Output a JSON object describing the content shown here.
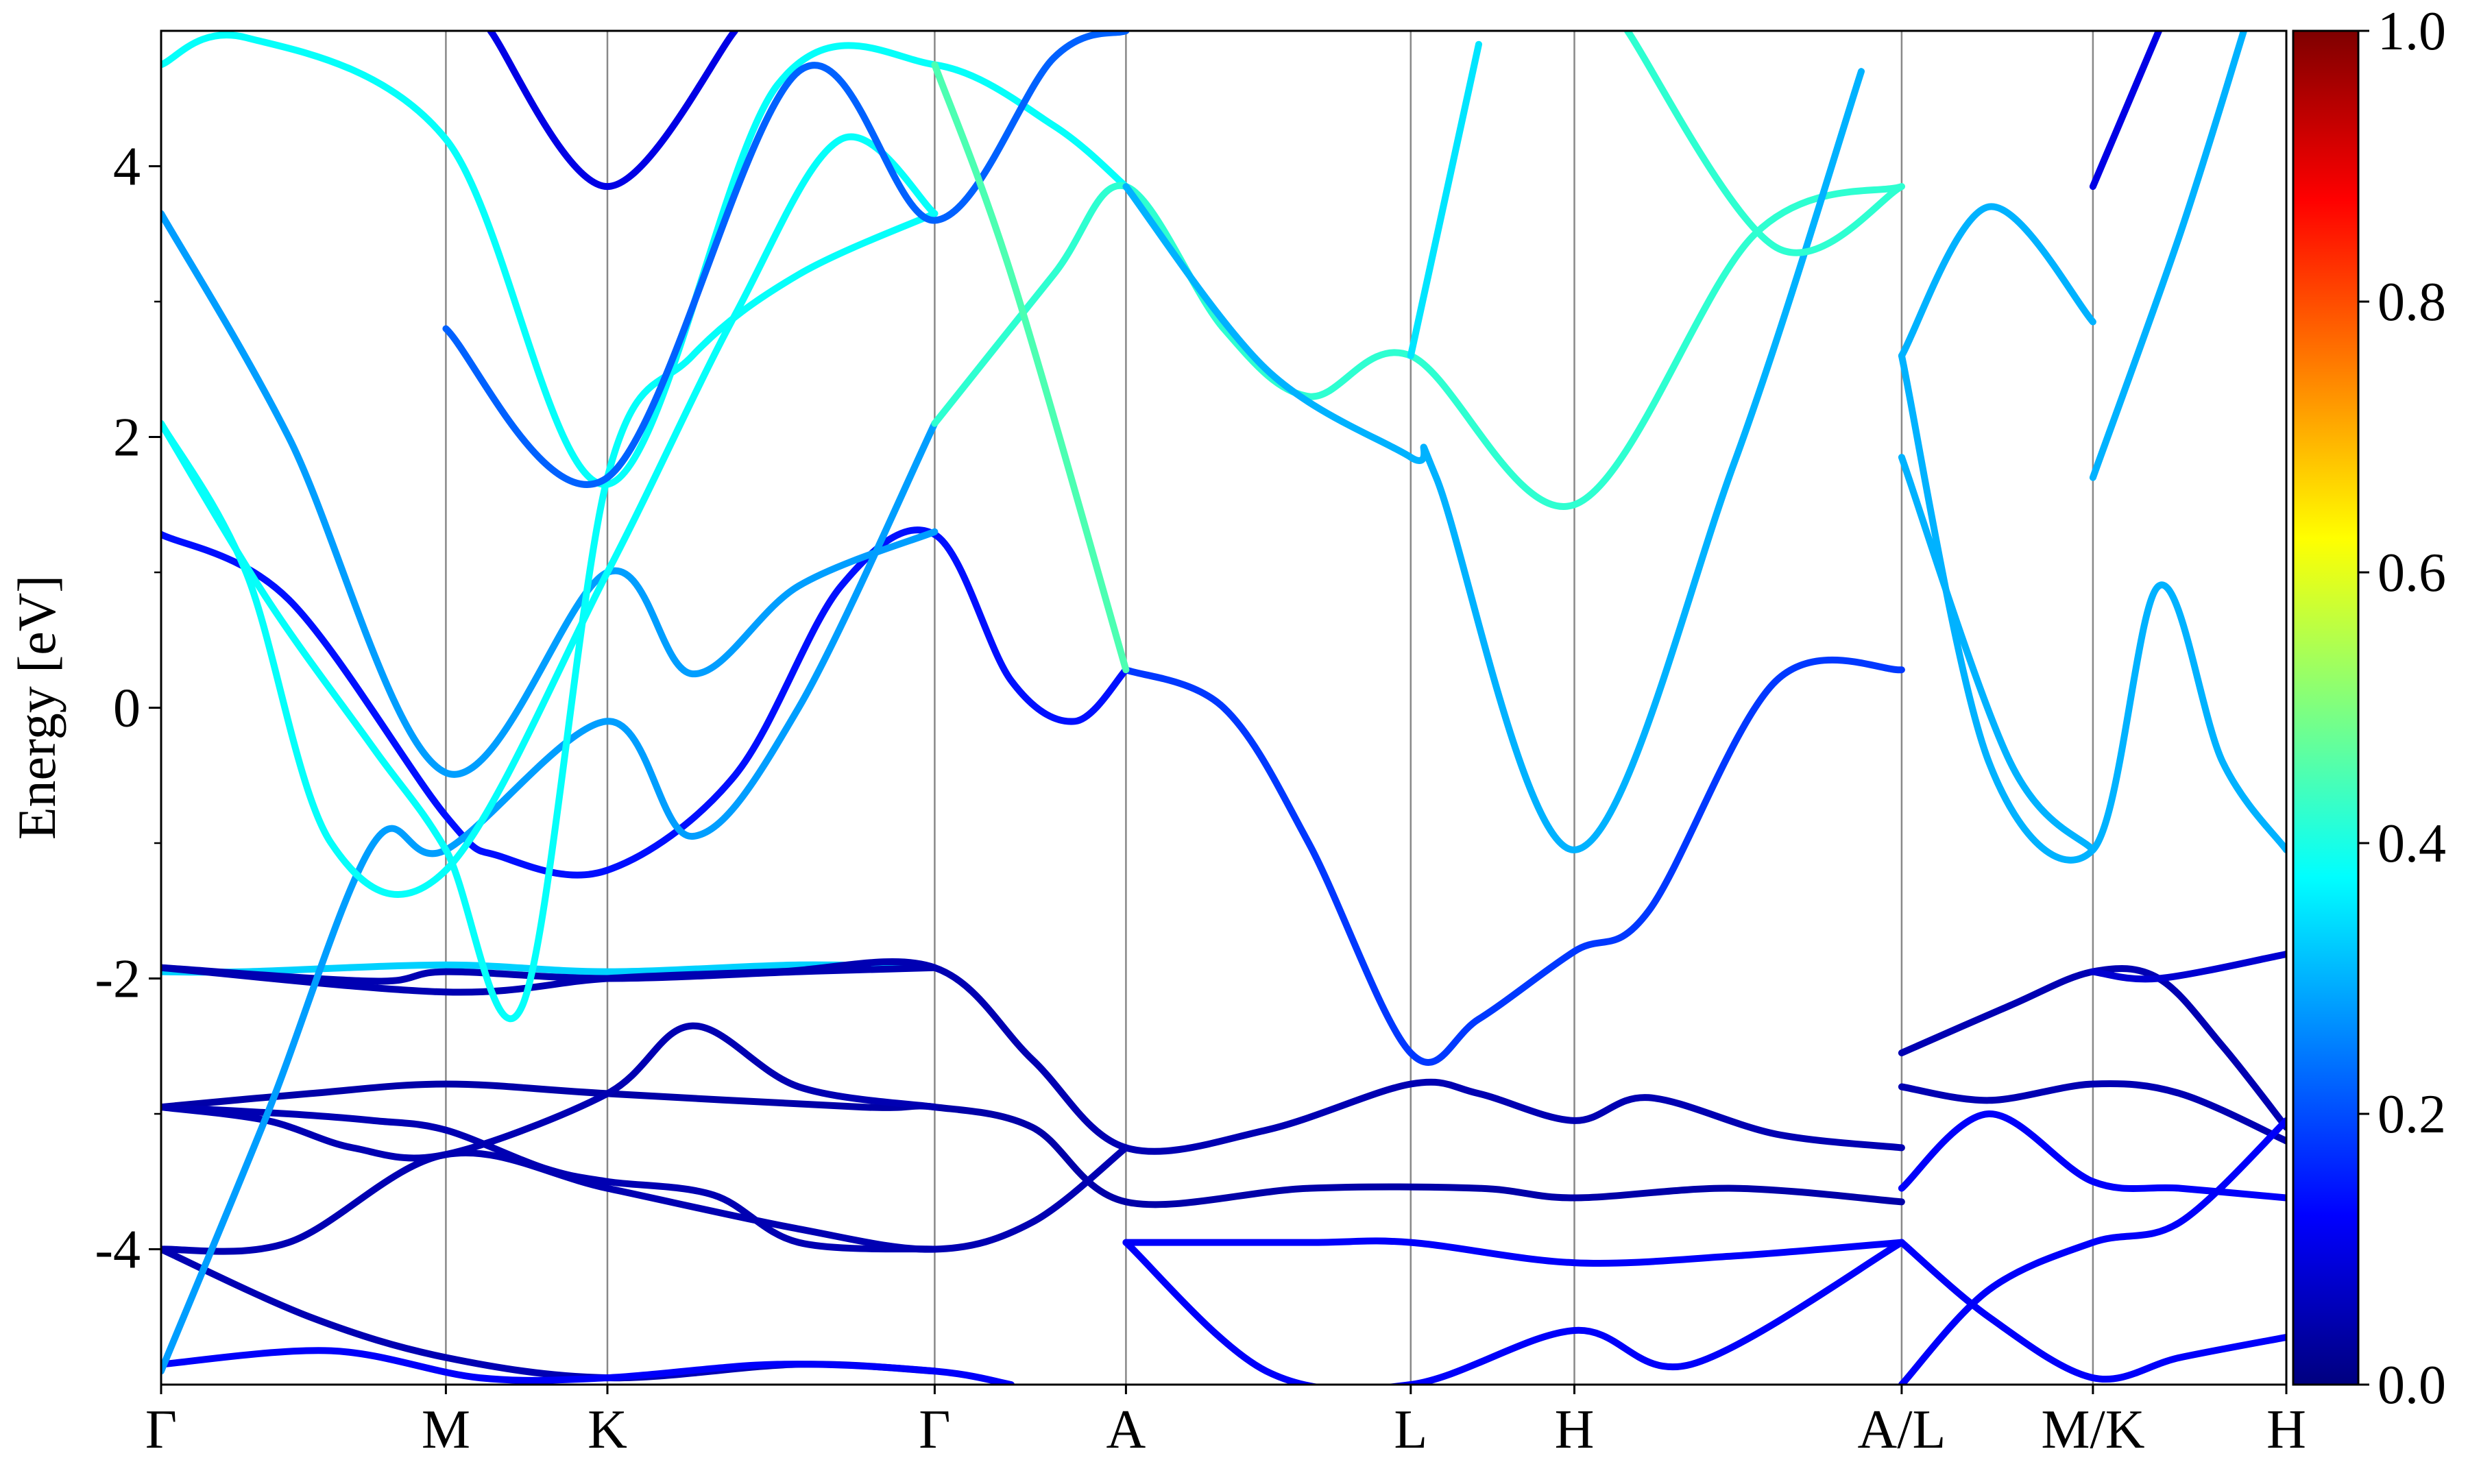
{
  "chart_data": {
    "type": "line",
    "title": "",
    "xlabel": "",
    "ylabel": "Energy [eV]",
    "ylim": [
      -5,
      5
    ],
    "y_ticks": [
      -4,
      -2,
      0,
      2,
      4
    ],
    "y_tick_labels": [
      "-4",
      "-2",
      "0",
      "2",
      "4"
    ],
    "y_minor_ticks": [
      -3,
      -1,
      1,
      3
    ],
    "grid": "vertical lines at high-symmetry points",
    "kpath_ticks": [
      {
        "label": "Γ",
        "x": 0.0
      },
      {
        "label": "M",
        "x": 0.134
      },
      {
        "label": "K",
        "x": 0.21
      },
      {
        "label": "Γ",
        "x": 0.364
      },
      {
        "label": "A",
        "x": 0.454
      },
      {
        "label": "L",
        "x": 0.588
      },
      {
        "label": "H",
        "x": 0.665
      },
      {
        "label": "A/L",
        "x": 0.819
      },
      {
        "label": "M/K",
        "x": 0.909
      },
      {
        "label": "H",
        "x": 1.0
      }
    ],
    "colorbar": {
      "colormap": "jet",
      "range": [
        0,
        1
      ],
      "ticks": [
        0.0,
        0.2,
        0.4,
        0.6,
        0.8,
        1.0
      ],
      "tick_labels": [
        "0.0",
        "0.2",
        "0.4",
        "0.6",
        "0.8",
        "1.0"
      ]
    },
    "colors": {
      "jet": [
        "#00007f",
        "#0000ff",
        "#007fff",
        "#00ffff",
        "#7fff7f",
        "#ffff00",
        "#ff7f00",
        "#ff0000",
        "#7f0000"
      ],
      "gridline": "#888888",
      "axis": "#000000"
    },
    "series": [
      {
        "w": 0.33,
        "points": [
          [
            0,
            -1.95
          ],
          [
            0.04,
            -1.95
          ],
          [
            0.134,
            -1.9
          ],
          [
            0.21,
            -1.95
          ],
          [
            0.3,
            -1.9
          ],
          [
            0.364,
            -1.92
          ]
        ]
      },
      {
        "w": 0.05,
        "points": [
          [
            0,
            -1.92
          ],
          [
            0.134,
            -2.1
          ],
          [
            0.21,
            -2.0
          ],
          [
            0.29,
            -1.95
          ],
          [
            0.364,
            -1.92
          ],
          [
            0.41,
            -2.6
          ],
          [
            0.454,
            -3.25
          ],
          [
            0.52,
            -3.12
          ],
          [
            0.588,
            -2.78
          ],
          [
            0.62,
            -2.85
          ],
          [
            0.665,
            -3.05
          ],
          [
            0.7,
            -2.88
          ],
          [
            0.76,
            -3.15
          ],
          [
            0.819,
            -3.25
          ]
        ]
      },
      {
        "w": 0.05,
        "points": [
          [
            0,
            -1.92
          ],
          [
            0.1,
            -2.02
          ],
          [
            0.134,
            -1.95
          ],
          [
            0.21,
            -2.0
          ],
          [
            0.3,
            -1.95
          ],
          [
            0.364,
            -1.92
          ]
        ]
      },
      {
        "w": 0.04,
        "points": [
          [
            0,
            -2.95
          ],
          [
            0.07,
            -2.85
          ],
          [
            0.134,
            -2.78
          ],
          [
            0.21,
            -2.85
          ],
          [
            0.33,
            -2.95
          ],
          [
            0.364,
            -2.95
          ],
          [
            0.41,
            -3.1
          ],
          [
            0.454,
            -3.65
          ],
          [
            0.54,
            -3.55
          ],
          [
            0.62,
            -3.55
          ],
          [
            0.665,
            -3.62
          ],
          [
            0.74,
            -3.55
          ],
          [
            0.819,
            -3.65
          ]
        ]
      },
      {
        "w": 0.05,
        "points": [
          [
            0,
            -2.95
          ],
          [
            0.05,
            -3.05
          ],
          [
            0.09,
            -3.25
          ],
          [
            0.134,
            -3.3
          ],
          [
            0.21,
            -2.85
          ],
          [
            0.25,
            -2.35
          ],
          [
            0.3,
            -2.8
          ],
          [
            0.364,
            -2.95
          ]
        ]
      },
      {
        "w": 0.05,
        "points": [
          [
            0,
            -2.95
          ],
          [
            0.06,
            -3.0
          ],
          [
            0.1,
            -3.05
          ],
          [
            0.134,
            -3.12
          ],
          [
            0.18,
            -3.4
          ],
          [
            0.21,
            -3.5
          ],
          [
            0.26,
            -3.6
          ],
          [
            0.3,
            -3.95
          ],
          [
            0.364,
            -4.0
          ]
        ]
      },
      {
        "w": 0.05,
        "points": [
          [
            0,
            -4.0
          ],
          [
            0.06,
            -3.95
          ],
          [
            0.134,
            -3.3
          ],
          [
            0.21,
            -3.55
          ],
          [
            0.3,
            -3.85
          ],
          [
            0.364,
            -4.0
          ],
          [
            0.41,
            -3.8
          ],
          [
            0.454,
            -3.25
          ]
        ]
      },
      {
        "w": 0.05,
        "points": [
          [
            0,
            -4.0
          ],
          [
            0.07,
            -4.5
          ],
          [
            0.134,
            -4.8
          ],
          [
            0.21,
            -4.95
          ],
          [
            0.3,
            -4.85
          ],
          [
            0.364,
            -4.9
          ]
        ]
      },
      {
        "w": 0.12,
        "points": [
          [
            0,
            -4.85
          ],
          [
            0.08,
            -4.75
          ],
          [
            0.15,
            -4.95
          ],
          [
            0.21,
            -4.95
          ],
          [
            0.29,
            -4.85
          ],
          [
            0.364,
            -4.9
          ],
          [
            0.4,
            -5.0
          ]
        ]
      },
      {
        "w": 0.12,
        "points": [
          [
            0.454,
            -3.95
          ],
          [
            0.54,
            -3.95
          ],
          [
            0.588,
            -3.95
          ],
          [
            0.665,
            -4.1
          ],
          [
            0.74,
            -4.05
          ],
          [
            0.819,
            -3.95
          ]
        ]
      },
      {
        "w": 0.12,
        "points": [
          [
            0.454,
            -3.95
          ],
          [
            0.52,
            -4.9
          ],
          [
            0.588,
            -5.0
          ],
          [
            0.665,
            -4.6
          ],
          [
            0.72,
            -4.85
          ],
          [
            0.819,
            -3.95
          ]
        ]
      },
      {
        "w": 0.18,
        "points": [
          [
            0.454,
            0.28
          ],
          [
            0.5,
            0.0
          ],
          [
            0.54,
            -1.0
          ],
          [
            0.588,
            -2.55
          ],
          [
            0.62,
            -2.3
          ],
          [
            0.665,
            -1.8
          ],
          [
            0.7,
            -1.5
          ],
          [
            0.76,
            0.2
          ],
          [
            0.819,
            0.28
          ]
        ]
      },
      {
        "w": 0.14,
        "points": [
          [
            0,
            1.28
          ],
          [
            0.06,
            0.8
          ],
          [
            0.134,
            -0.8
          ],
          [
            0.16,
            -1.1
          ],
          [
            0.21,
            -1.2
          ],
          [
            0.27,
            -0.5
          ],
          [
            0.32,
            0.9
          ],
          [
            0.364,
            1.28
          ],
          [
            0.4,
            0.2
          ],
          [
            0.43,
            -0.1
          ],
          [
            0.454,
            0.28
          ]
        ]
      },
      {
        "w": 0.28,
        "points": [
          [
            0,
            3.65
          ],
          [
            0.06,
            2.0
          ],
          [
            0.134,
            -0.48
          ],
          [
            0.21,
            1.0
          ],
          [
            0.25,
            0.25
          ],
          [
            0.3,
            0.9
          ],
          [
            0.364,
            1.3
          ]
        ]
      },
      {
        "w": 0.28,
        "points": [
          [
            0,
            -4.9
          ],
          [
            0.05,
            -3.0
          ],
          [
            0.1,
            -1.0
          ],
          [
            0.134,
            -1.05
          ],
          [
            0.21,
            -0.1
          ],
          [
            0.25,
            -0.95
          ],
          [
            0.3,
            0.0
          ],
          [
            0.364,
            2.1
          ]
        ]
      },
      {
        "w": 0.38,
        "points": [
          [
            0,
            2.1
          ],
          [
            0.05,
            0.8
          ],
          [
            0.1,
            -0.3
          ],
          [
            0.134,
            -1.05
          ],
          [
            0.17,
            -2.2
          ],
          [
            0.21,
            1.7
          ],
          [
            0.25,
            2.6
          ],
          [
            0.3,
            3.2
          ],
          [
            0.364,
            3.65
          ]
        ]
      },
      {
        "w": 0.38,
        "points": [
          [
            0,
            2.1
          ],
          [
            0.04,
            1.0
          ],
          [
            0.08,
            -1.0
          ],
          [
            0.134,
            -1.2
          ],
          [
            0.21,
            1.0
          ],
          [
            0.27,
            2.9
          ],
          [
            0.32,
            4.2
          ],
          [
            0.364,
            3.65
          ]
        ]
      },
      {
        "w": 0.38,
        "points": [
          [
            0,
            4.75
          ],
          [
            0.04,
            4.95
          ],
          [
            0.134,
            4.2
          ],
          [
            0.21,
            1.65
          ],
          [
            0.29,
            4.6
          ],
          [
            0.364,
            4.75
          ],
          [
            0.42,
            4.3
          ],
          [
            0.454,
            3.85
          ]
        ]
      },
      {
        "w": 0.42,
        "points": [
          [
            0.364,
            2.1
          ],
          [
            0.42,
            3.2
          ],
          [
            0.454,
            3.85
          ],
          [
            0.5,
            2.8
          ],
          [
            0.54,
            2.3
          ],
          [
            0.588,
            2.6
          ],
          [
            0.665,
            1.5
          ],
          [
            0.75,
            3.5
          ],
          [
            0.819,
            3.85
          ]
        ]
      },
      {
        "w": 0.22,
        "points": [
          [
            0.134,
            2.8
          ],
          [
            0.21,
            1.7
          ],
          [
            0.3,
            4.7
          ],
          [
            0.364,
            3.6
          ],
          [
            0.42,
            4.8
          ],
          [
            0.454,
            5.0
          ]
        ]
      },
      {
        "w": 0.1,
        "points": [
          [
            0.155,
            5.0
          ],
          [
            0.21,
            3.85
          ],
          [
            0.27,
            5.0
          ]
        ]
      },
      {
        "w": 0.45,
        "points": [
          [
            0.364,
            4.75
          ],
          [
            0.4,
            3.2
          ],
          [
            0.454,
            0.28
          ]
        ]
      },
      {
        "w": 0.3,
        "points": [
          [
            0.454,
            3.85
          ],
          [
            0.52,
            2.5
          ],
          [
            0.588,
            1.85
          ],
          [
            0.6,
            1.7
          ],
          [
            0.665,
            -1.05
          ],
          [
            0.74,
            1.8
          ],
          [
            0.8,
            4.7
          ]
        ]
      },
      {
        "w": 0.35,
        "points": [
          [
            0.588,
            2.6
          ],
          [
            0.62,
            4.9
          ]
        ]
      },
      {
        "w": 0.42,
        "points": [
          [
            0.69,
            5.0
          ],
          [
            0.76,
            3.4
          ],
          [
            0.819,
            3.85
          ]
        ]
      },
      {
        "w": 0.3,
        "points": [
          [
            0.819,
            2.6
          ],
          [
            0.86,
            -0.4
          ],
          [
            0.909,
            -1.05
          ],
          [
            0.94,
            0.9
          ],
          [
            0.97,
            -0.4
          ],
          [
            1.0,
            -1.05
          ]
        ]
      },
      {
        "w": 0.3,
        "points": [
          [
            0.819,
            1.85
          ],
          [
            0.87,
            -0.4
          ],
          [
            0.909,
            -1.05
          ]
        ]
      },
      {
        "w": 0.3,
        "points": [
          [
            0.819,
            2.6
          ],
          [
            0.86,
            3.7
          ],
          [
            0.909,
            2.85
          ]
        ]
      },
      {
        "w": 0.3,
        "points": [
          [
            0.909,
            1.7
          ],
          [
            0.95,
            3.5
          ],
          [
            0.98,
            5.0
          ]
        ]
      },
      {
        "w": 0.1,
        "points": [
          [
            0.909,
            3.85
          ],
          [
            0.94,
            5.0
          ]
        ]
      },
      {
        "w": 0.05,
        "points": [
          [
            0.819,
            -2.55
          ],
          [
            0.87,
            -2.2
          ],
          [
            0.909,
            -1.95
          ],
          [
            0.94,
            -2.0
          ],
          [
            0.97,
            -2.5
          ],
          [
            1.0,
            -3.1
          ]
        ]
      },
      {
        "w": 0.05,
        "points": [
          [
            0.819,
            -2.8
          ],
          [
            0.86,
            -2.9
          ],
          [
            0.909,
            -2.78
          ],
          [
            0.95,
            -2.85
          ],
          [
            1.0,
            -3.2
          ]
        ]
      },
      {
        "w": 0.12,
        "points": [
          [
            0.819,
            -3.55
          ],
          [
            0.86,
            -3.0
          ],
          [
            0.909,
            -3.5
          ],
          [
            0.95,
            -3.55
          ],
          [
            1.0,
            -3.62
          ]
        ]
      },
      {
        "w": 0.12,
        "points": [
          [
            0.819,
            -3.95
          ],
          [
            0.86,
            -4.5
          ],
          [
            0.909,
            -4.95
          ],
          [
            0.95,
            -4.8
          ],
          [
            1.0,
            -4.65
          ]
        ]
      },
      {
        "w": 0.12,
        "points": [
          [
            0.819,
            -5.0
          ],
          [
            0.86,
            -4.3
          ],
          [
            0.909,
            -3.95
          ],
          [
            0.95,
            -3.8
          ],
          [
            1.0,
            -3.05
          ]
        ]
      },
      {
        "w": 0.08,
        "points": [
          [
            0.909,
            -1.95
          ],
          [
            0.94,
            -2.0
          ],
          [
            1.0,
            -1.82
          ]
        ]
      }
    ]
  }
}
